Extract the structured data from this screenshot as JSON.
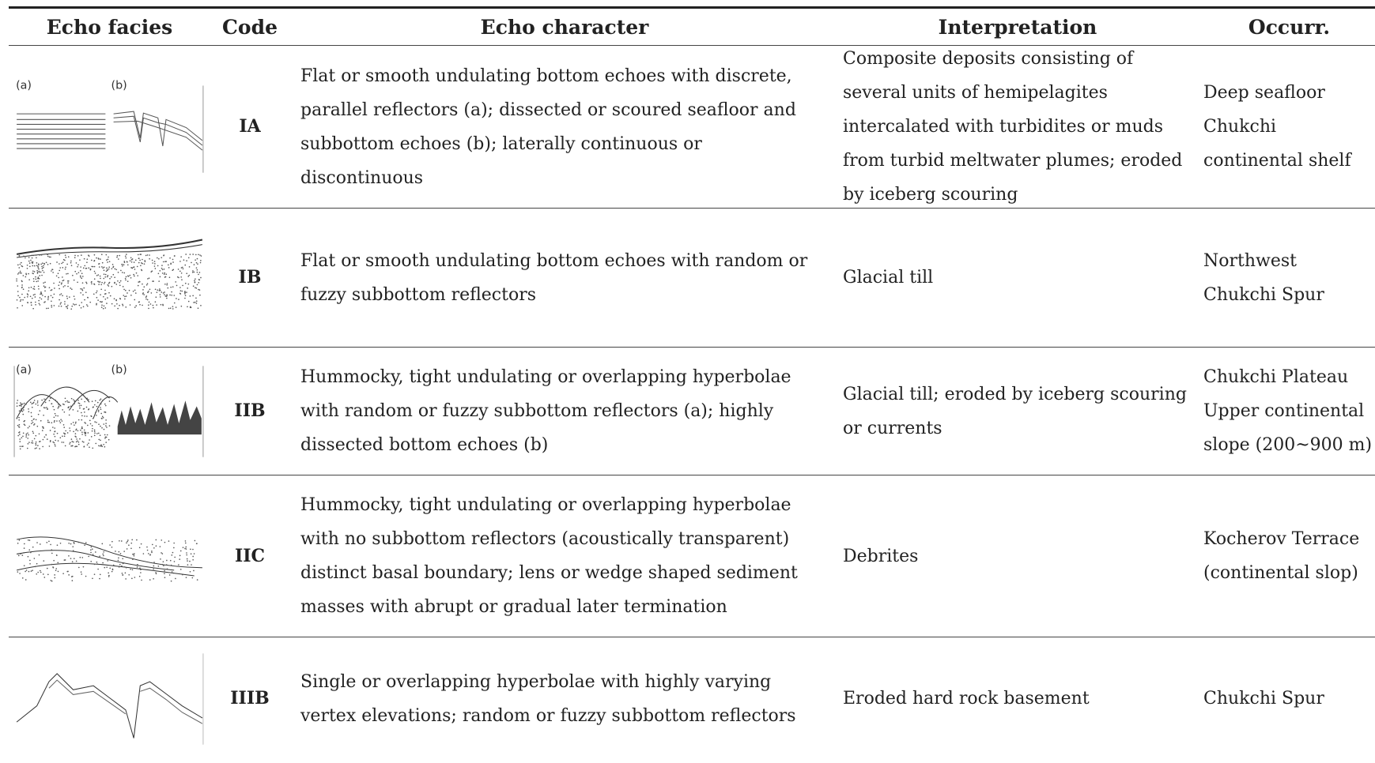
{
  "table": {
    "header": [
      "Echo facies",
      "Code",
      "Echo character",
      "Interpretation",
      "Occurr."
    ],
    "rows": [
      {
        "figure_labels": [
          "(a)",
          "(b)"
        ],
        "code": "IA",
        "echo_character": "Flat or smooth undulating bottom echoes with discrete, parallel reflectors (a); dissected or scoured seafloor and subbottom echoes (b); laterally continuous or discontinuous",
        "interpretation": "Composite deposits consisting of several units of hemipelagites intercalated with turbidites or muds from turbid meltwater plumes; eroded by iceberg scouring",
        "occurrence": [
          "Deep seafloor",
          "Chukchi continental shelf"
        ]
      },
      {
        "figure_labels": [],
        "code": "IB",
        "echo_character": "Flat or smooth undulating bottom echoes with random or fuzzy subbottom reflectors",
        "interpretation": "Glacial till",
        "occurrence": [
          "Northwest Chukchi Spur"
        ]
      },
      {
        "figure_labels": [
          "(a)",
          "(b)"
        ],
        "code": "IIB",
        "echo_character": "Hummocky, tight undulating or overlapping hyperbolae with random or fuzzy subbottom reflectors (a); highly dissected bottom echoes (b)",
        "interpretation": "Glacial till; eroded by iceberg scouring or currents",
        "occurrence": [
          "Chukchi Plateau",
          "Upper continental slope (200~900 m)"
        ]
      },
      {
        "figure_labels": [],
        "code": "IIC",
        "echo_character": "Hummocky, tight undulating or overlapping hyperbolae with no subbottom reflectors (acoustically transparent) distinct basal boundary; lens or wedge shaped sediment masses with abrupt or gradual later termination",
        "interpretation": "Debrites",
        "occurrence": [
          "Kocherov Terrace (continental slop)"
        ]
      },
      {
        "figure_labels": [],
        "code": "IIIB",
        "echo_character": "Single or overlapping hyperbolae with highly varying vertex elevations; random or fuzzy subbottom reflectors",
        "interpretation": "Eroded hard rock basement",
        "occurrence": [
          "Chukchi Spur"
        ]
      }
    ]
  }
}
